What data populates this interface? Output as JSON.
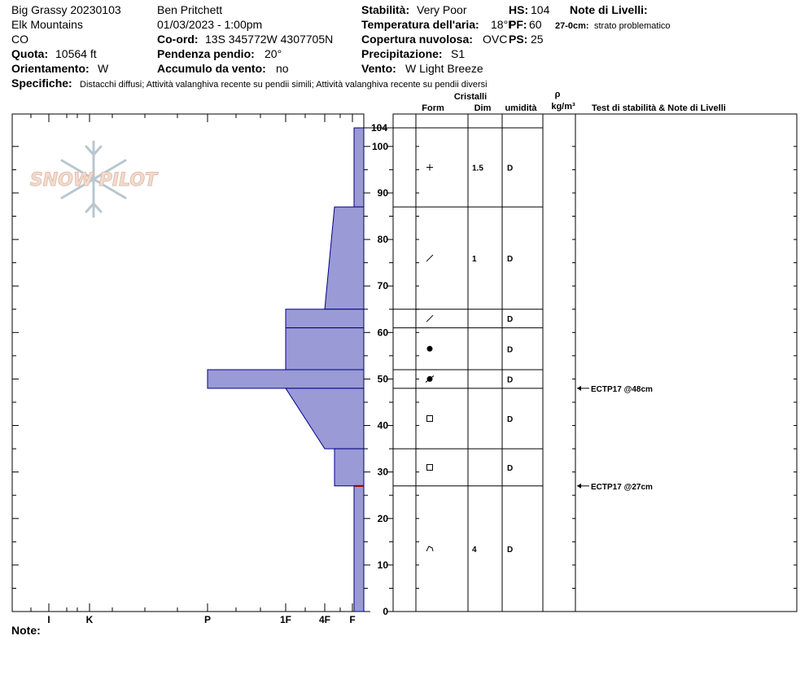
{
  "header": {
    "site_name": "Big Grassy 20230103",
    "range": "Elk Mountains",
    "state": "CO",
    "elevation_label": "Quota:",
    "elevation_value": "10564 ft",
    "aspect_label": "Orientamento:",
    "aspect_value": "W",
    "observer": "Ben Pritchett",
    "datetime": "01/03/2023 - 1:00pm",
    "coord_label": "Co-ord:",
    "coord_value": "13S 345772W 4307705N",
    "slope_label": "Pendenza pendio:",
    "slope_value": "20°",
    "wind_loading_label": "Accumulo da vento:",
    "wind_loading_value": "no",
    "stability_label": "Stabilità:",
    "stability_value": "Very Poor",
    "air_temp_label": "Temperatura dell'aria:",
    "air_temp_value": "18°F",
    "sky_label": "Copertura nuvolosa:",
    "sky_value": "OVC",
    "precip_label": "Precipitazione:",
    "precip_value": "S1",
    "wind_label": "Vento:",
    "wind_value": "W Light Breeze",
    "hs_label": "HS:",
    "hs_value": "104",
    "pf_label": "PF:",
    "pf_value": "60",
    "ps_label": "PS:",
    "ps_value": "25",
    "layer_notes_label": "Note di Livelli:",
    "layer_note_depth": "27-0cm:",
    "layer_note_text": "strato problematico",
    "specifics_label": "Specifiche:",
    "specifics_value": "Distacchi diffusi;  Attività valanghiva recente su pendii simili;  Attività valanghiva recente su pendii diversi",
    "notes_label": "Note:"
  },
  "logo_text": "SNOW PILOT",
  "table_headers": {
    "crystals": "Cristalli",
    "form": "Form",
    "size": "Dim",
    "moisture": "umidità",
    "rho": "ρ",
    "density_unit": "kg/m³",
    "tests": "Test di stabilità & Note di Livelli"
  },
  "colors": {
    "hardness_fill": "#9a9ad6",
    "hardness_stroke": "#00008b",
    "problem_layer": "#8b0000"
  },
  "chart_data": {
    "type": "snow-profile",
    "ylim": [
      0,
      104
    ],
    "y_unit": "cm",
    "y_ticks": [
      0,
      10,
      20,
      30,
      40,
      50,
      60,
      70,
      80,
      90,
      100
    ],
    "top_label": "104",
    "hardness_scale": [
      "I",
      "K",
      "P",
      "1F",
      "4F",
      "F"
    ],
    "hardness_profile": [
      {
        "top": 104,
        "bottom": 87,
        "hardness_top": "F",
        "hardness_bottom": "F"
      },
      {
        "top": 87,
        "bottom": 65,
        "hardness_top": "4F",
        "hardness_bottom": "4F+"
      },
      {
        "top": 65,
        "bottom": 61,
        "hardness_top": "1F",
        "hardness_bottom": "1F"
      },
      {
        "top": 61,
        "bottom": 52,
        "hardness_top": "1F",
        "hardness_bottom": "1F"
      },
      {
        "top": 52,
        "bottom": 48,
        "hardness_top": "P",
        "hardness_bottom": "P"
      },
      {
        "top": 48,
        "bottom": 35,
        "hardness_top": "1F-",
        "hardness_bottom": "4F+"
      },
      {
        "top": 35,
        "bottom": 27,
        "hardness_top": "4F",
        "hardness_bottom": "4F"
      },
      {
        "top": 27,
        "bottom": 0,
        "hardness_top": "F",
        "hardness_bottom": "F"
      }
    ],
    "layers": [
      {
        "top": 104,
        "bottom": 87,
        "form": "+",
        "size": "1.5",
        "moisture": "D"
      },
      {
        "top": 87,
        "bottom": 65,
        "form": "/",
        "size": "1",
        "moisture": "D"
      },
      {
        "top": 65,
        "bottom": 61,
        "form": "/",
        "size": "",
        "moisture": "D"
      },
      {
        "top": 61,
        "bottom": 52,
        "form": "●",
        "size": "",
        "moisture": "D"
      },
      {
        "top": 52,
        "bottom": 48,
        "form": "●/",
        "size": "",
        "moisture": "D"
      },
      {
        "top": 48,
        "bottom": 35,
        "form": "□",
        "size": "",
        "moisture": "D"
      },
      {
        "top": 35,
        "bottom": 27,
        "form": "□",
        "size": "",
        "moisture": "D"
      },
      {
        "top": 27,
        "bottom": 0,
        "form": "^",
        "size": "4",
        "moisture": "D"
      }
    ],
    "tests": [
      {
        "depth": 48,
        "label": "ECTP17 @48cm"
      },
      {
        "depth": 27,
        "label": "ECTP17 @27cm"
      }
    ]
  }
}
